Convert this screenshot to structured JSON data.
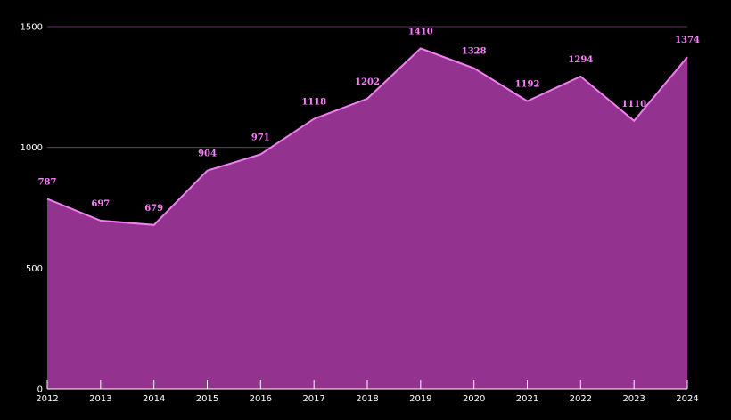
{
  "chart_data": {
    "type": "area",
    "title": "",
    "xlabel": "",
    "ylabel": "",
    "x": [
      "2012",
      "2013",
      "2014",
      "2015",
      "2016",
      "2017",
      "2018",
      "2019",
      "2020",
      "2021",
      "2022",
      "2023",
      "2024"
    ],
    "series": [
      {
        "values": [
          787,
          697,
          679,
          904,
          971,
          1118,
          1202,
          1410,
          1328,
          1192,
          1294,
          1110,
          1374
        ]
      }
    ],
    "ylim": [
      0,
      1500
    ],
    "yticks": [
      0,
      500,
      1000,
      1500
    ],
    "grid": true,
    "legend": "none",
    "colors": {
      "background": "#000000",
      "area_fill": "#93338f",
      "line": "#f07ff0",
      "data_label": "#ff80ff",
      "grid": "#c05cc0",
      "axis_text": "#ffffff"
    }
  }
}
